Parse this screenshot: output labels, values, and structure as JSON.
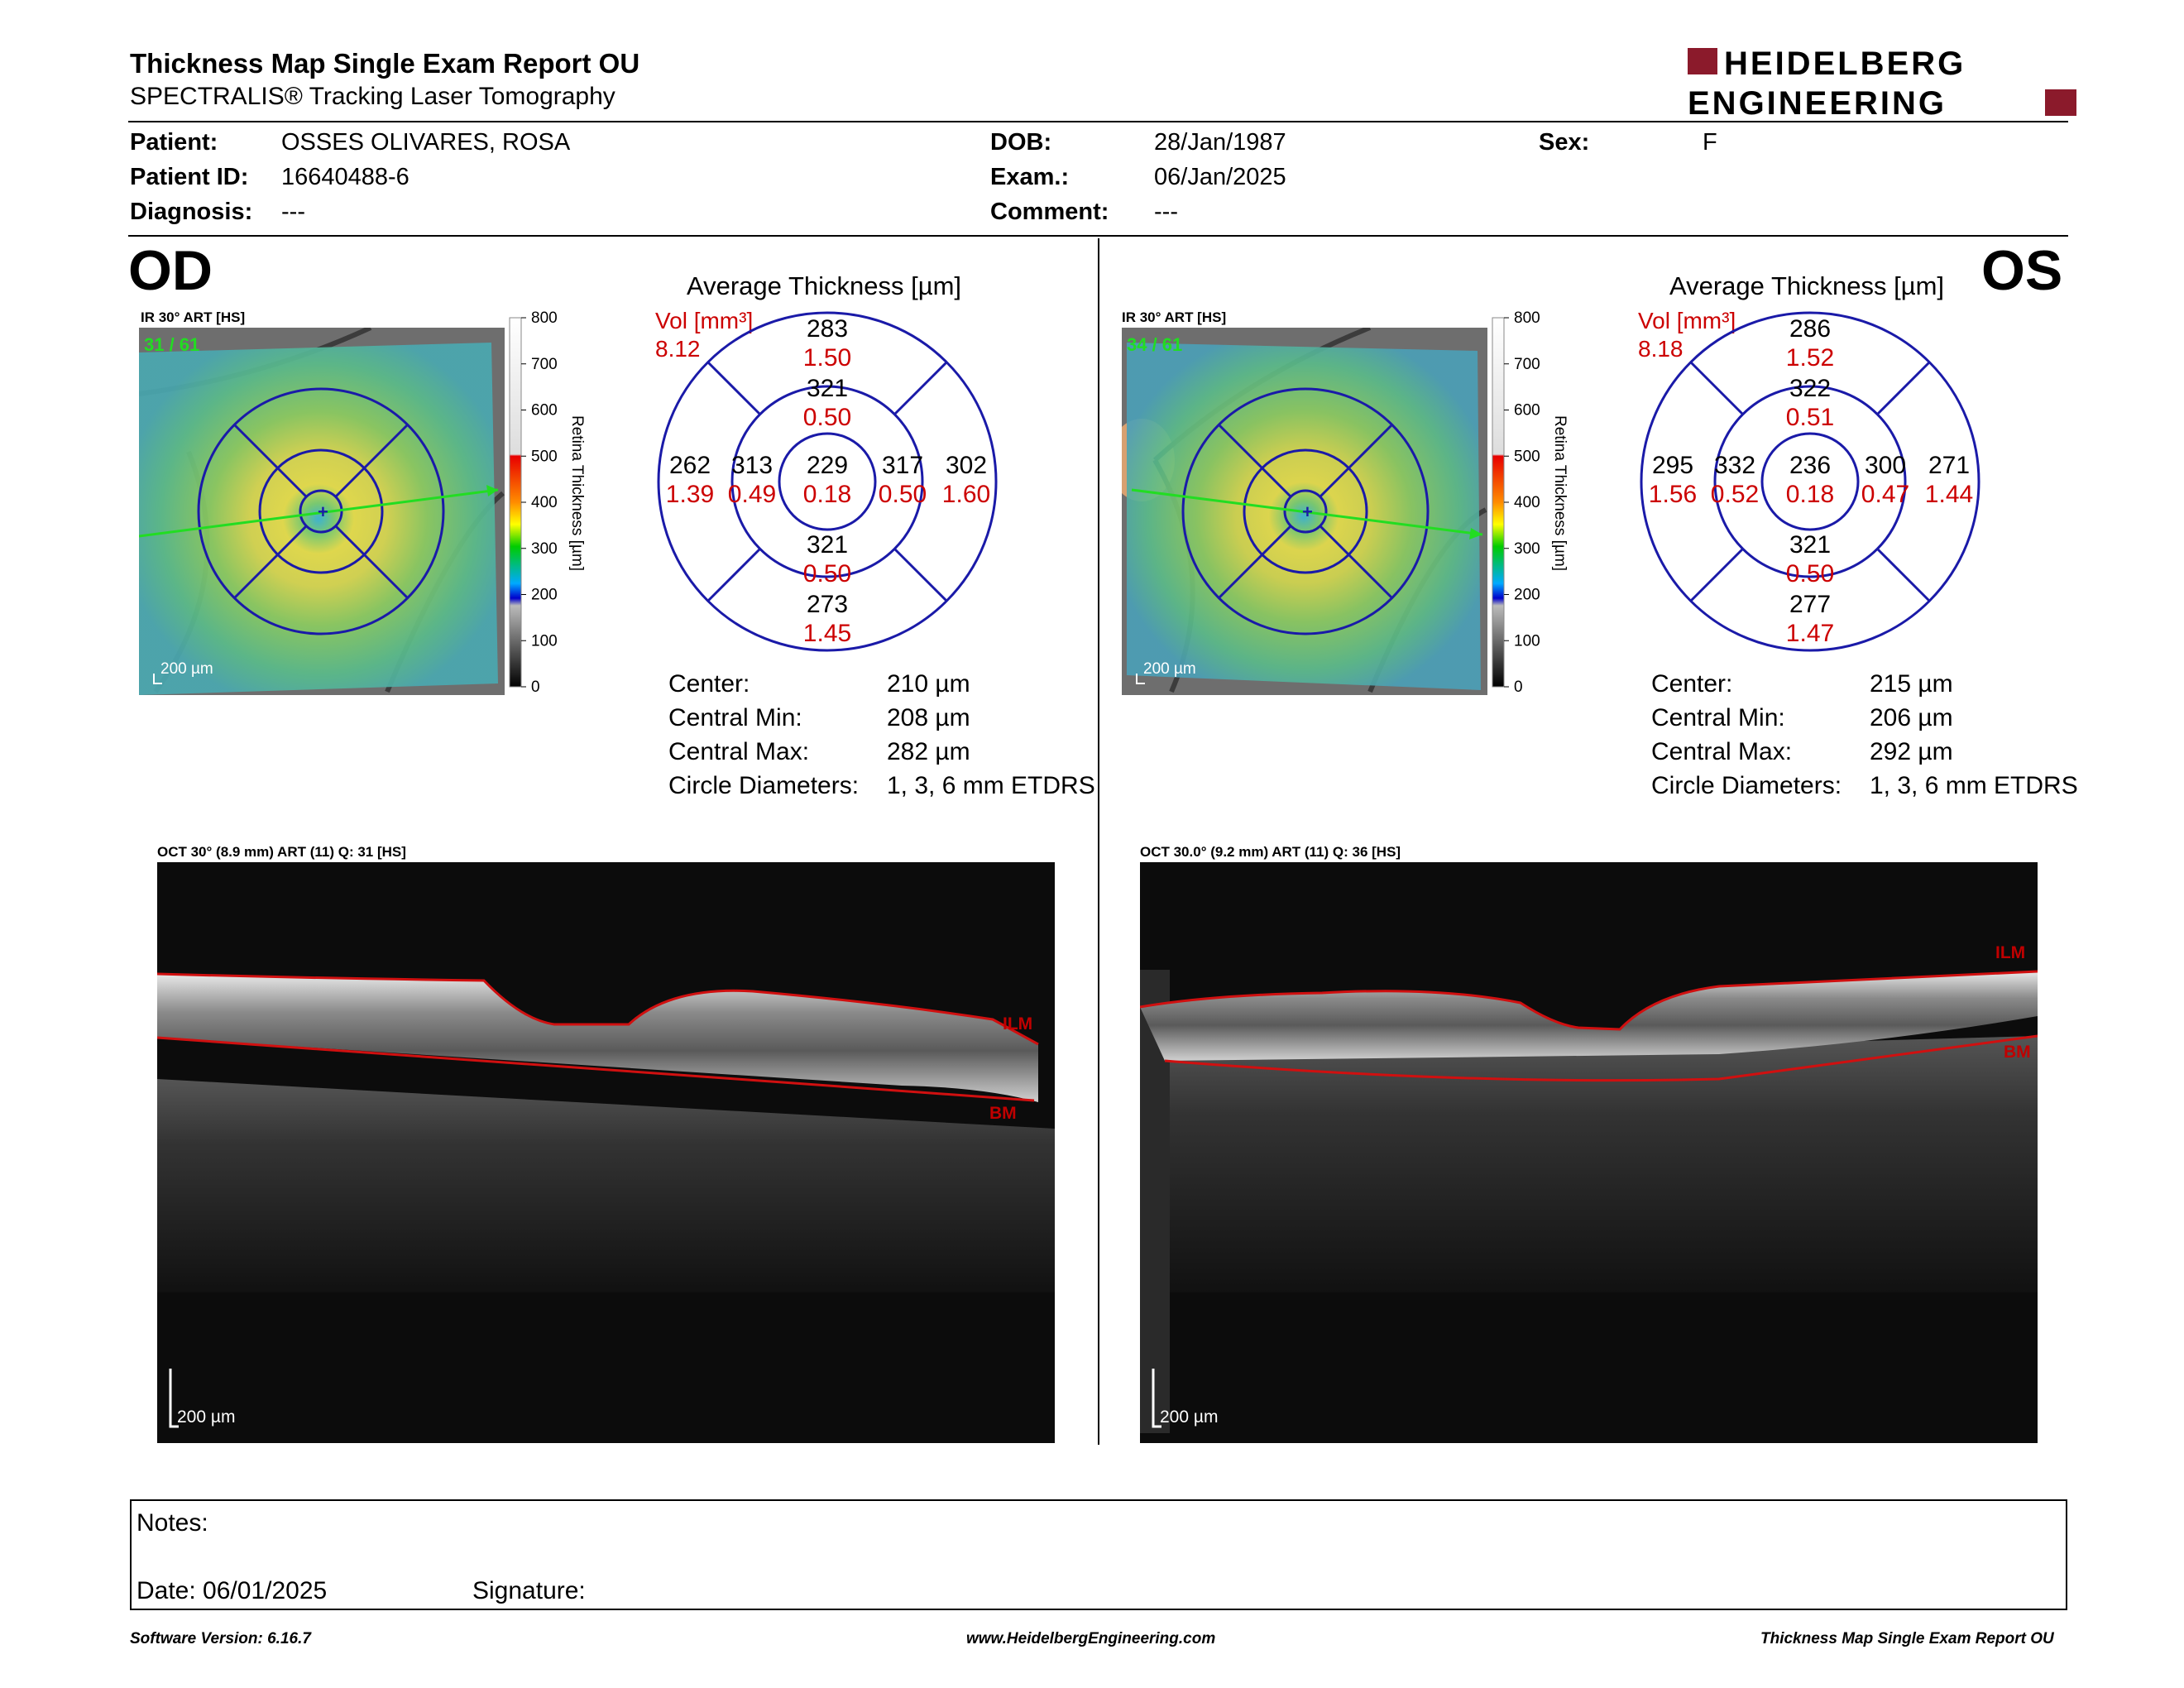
{
  "report": {
    "title": "Thickness Map Single Exam Report OU",
    "subtitle": "SPECTRALIS® Tracking Laser Tomography",
    "brand_line1": "HEIDELBERG",
    "brand_line2": "ENGINEERING",
    "brand_color": "#8b1a2b"
  },
  "patient": {
    "patient_label": "Patient:",
    "patient_value": "OSSES OLIVARES, ROSA",
    "id_label": "Patient ID:",
    "id_value": "16640488-6",
    "diagnosis_label": "Diagnosis:",
    "diagnosis_value": "---",
    "dob_label": "DOB:",
    "dob_value": "28/Jan/1987",
    "exam_label": "Exam.:",
    "exam_value": "06/Jan/2025",
    "comment_label": "Comment:",
    "comment_value": "---",
    "sex_label": "Sex:",
    "sex_value": "F"
  },
  "colorbar": {
    "ticks": [
      "800",
      "700",
      "600",
      "500",
      "400",
      "300",
      "200",
      "100",
      "0"
    ],
    "axis_label": "Retina Thickness [µm]"
  },
  "od": {
    "eye_label": "OD",
    "map_label": "IR 30° ART [HS]",
    "map_quality": "31 / 61",
    "scale_label": "200 µm",
    "avg_title": "Average Thickness [µm]",
    "vol_label": "Vol [mm³]",
    "vol_value": "8.12",
    "sectors": {
      "center": {
        "t": "229",
        "v": "0.18"
      },
      "inner_sup": {
        "t": "321",
        "v": "0.50"
      },
      "inner_inf": {
        "t": "321",
        "v": "0.50"
      },
      "inner_left": {
        "t": "313",
        "v": "0.49"
      },
      "inner_right": {
        "t": "317",
        "v": "0.50"
      },
      "outer_sup": {
        "t": "283",
        "v": "1.50"
      },
      "outer_inf": {
        "t": "273",
        "v": "1.45"
      },
      "outer_left": {
        "t": "262",
        "v": "1.39"
      },
      "outer_right": {
        "t": "302",
        "v": "1.60"
      }
    },
    "stats": {
      "center_label": "Center:",
      "center_value": "210 µm",
      "min_label": "Central Min:",
      "min_value": "208 µm",
      "max_label": "Central Max:",
      "max_value": "282 µm",
      "diam_label": "Circle Diameters:",
      "diam_value": "1, 3, 6 mm ETDRS"
    },
    "oct_label": "OCT 30° (8.9 mm) ART (11) Q: 31 [HS]",
    "oct_scale": "200 µm",
    "ilm": "ILM",
    "bm": "BM"
  },
  "os": {
    "eye_label": "OS",
    "map_label": "IR 30° ART [HS]",
    "map_quality": "34 / 61",
    "scale_label": "200 µm",
    "avg_title": "Average Thickness [µm]",
    "vol_label": "Vol [mm³]",
    "vol_value": "8.18",
    "sectors": {
      "center": {
        "t": "236",
        "v": "0.18"
      },
      "inner_sup": {
        "t": "322",
        "v": "0.51"
      },
      "inner_inf": {
        "t": "321",
        "v": "0.50"
      },
      "inner_left": {
        "t": "332",
        "v": "0.52"
      },
      "inner_right": {
        "t": "300",
        "v": "0.47"
      },
      "outer_sup": {
        "t": "286",
        "v": "1.52"
      },
      "outer_inf": {
        "t": "277",
        "v": "1.47"
      },
      "outer_left": {
        "t": "295",
        "v": "1.56"
      },
      "outer_right": {
        "t": "271",
        "v": "1.44"
      }
    },
    "stats": {
      "center_label": "Center:",
      "center_value": "215 µm",
      "min_label": "Central Min:",
      "min_value": "206 µm",
      "max_label": "Central Max:",
      "max_value": "292 µm",
      "diam_label": "Circle Diameters:",
      "diam_value": "1, 3, 6 mm ETDRS"
    },
    "oct_label": "OCT 30.0° (9.2 mm) ART (11) Q: 36 [HS]",
    "oct_scale": "200 µm",
    "ilm": "ILM",
    "bm": "BM"
  },
  "notes": {
    "notes_label": "Notes:",
    "date_label": "Date: 06/01/2025",
    "signature_label": "Signature:"
  },
  "footer": {
    "software": "Software Version: 6.16.7",
    "website": "www.HeidelbergEngineering.com",
    "report_name": "Thickness Map Single Exam Report OU"
  },
  "colors": {
    "etdrs_blue": "#1a1aa8",
    "volume_red": "#cc0000",
    "scan_line_green": "#22dd22",
    "segmentation_red": "#d01010"
  }
}
